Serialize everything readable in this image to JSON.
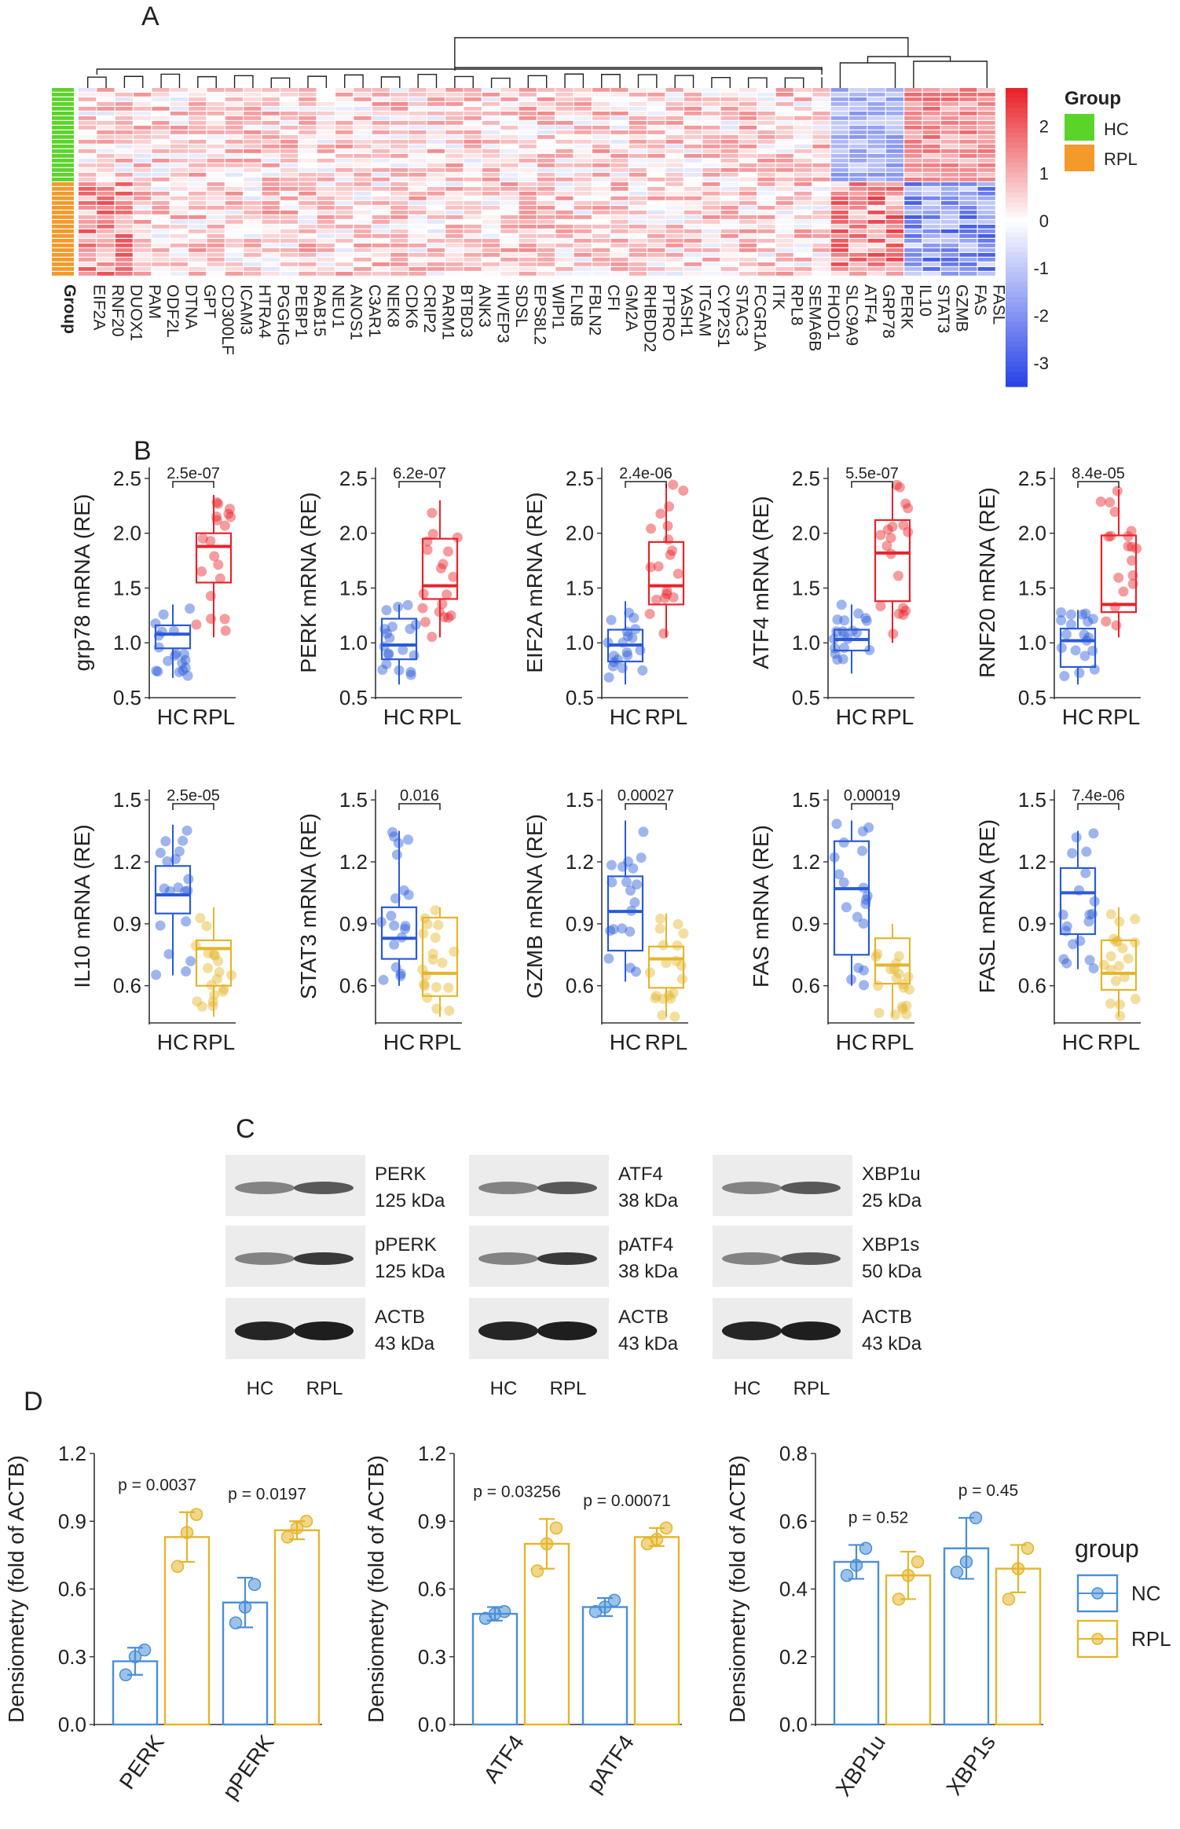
{
  "panel_labels": [
    "A",
    "B",
    "C",
    "D"
  ],
  "colors": {
    "hc": "#2a5bd7",
    "rpl": "#e8232b",
    "rpl_b2": "#e5b52a",
    "nc_d": "#4a8fd8",
    "rpl_d": "#e5b52a",
    "group_hc": "#5bd42a",
    "group_rpl": "#f39a2a",
    "heat_low": "#2a44e8",
    "heat_mid": "#ffffff",
    "heat_high": "#e8232b"
  },
  "chart_data": [
    {
      "type": "heatmap",
      "panel": "A",
      "row_annotation_label": "Group",
      "columns": [
        "EIF2A",
        "RNF20",
        "DUOX1",
        "PAM",
        "ODF2L",
        "DTNA",
        "GPT",
        "CD300LF",
        "ICAM3",
        "HTRA4",
        "PGGHG",
        "PEBP1",
        "RAB15",
        "NEU1",
        "ANOS1",
        "C3AR1",
        "NEK8",
        "CDK6",
        "CRIP2",
        "PARM1",
        "BTBD3",
        "ANK3",
        "HIVEP3",
        "SDSL",
        "EPS8L2",
        "WIPI1",
        "FLNB",
        "FBLN2",
        "CFI",
        "GM2A",
        "RHBDD2",
        "PTPRO",
        "YASH1",
        "ITGAM",
        "CYP2S1",
        "STAC3",
        "FCGR1A",
        "ITK",
        "RPL8",
        "SEMA6B",
        "FHOD1",
        "SLC9A9",
        "ATF4",
        "GRP78",
        "PERK",
        "IL10",
        "STAT3",
        "GZMB",
        "FAS",
        "FASL"
      ],
      "legend": {
        "title": "Group",
        "entries": [
          "HC",
          "RPL"
        ]
      },
      "colorbar": {
        "ticks": [
          "2",
          "1",
          "0",
          "-1",
          "-2",
          "-3"
        ],
        "range": [
          -3.5,
          2.8
        ]
      },
      "n_hc": 20,
      "n_rpl": 20
    },
    {
      "type": "box",
      "panel": "B",
      "groups": [
        "HC",
        "RPL"
      ],
      "plots": [
        {
          "ylabel": "grp78 mRNA (RE)",
          "p": "2.5e-07",
          "ylim": [
            0.5,
            2.6
          ],
          "ticks": [
            0.5,
            1.0,
            1.5,
            2.0,
            2.5
          ],
          "box_hc": [
            0.68,
            0.95,
            1.08,
            1.16,
            1.35
          ],
          "box_rpl": [
            1.05,
            1.55,
            1.88,
            2.0,
            2.35
          ],
          "color_rpl": "red"
        },
        {
          "ylabel": "PERK mRNA (RE)",
          "p": "6.2e-07",
          "ylim": [
            0.5,
            2.6
          ],
          "ticks": [
            0.5,
            1.0,
            1.5,
            2.0,
            2.5
          ],
          "box_hc": [
            0.62,
            0.85,
            0.98,
            1.22,
            1.35
          ],
          "box_rpl": [
            1.05,
            1.4,
            1.52,
            1.95,
            2.3
          ],
          "color_rpl": "red"
        },
        {
          "ylabel": "EIF2A mRNA (RE)",
          "p": "2.4e-06",
          "ylim": [
            0.5,
            2.6
          ],
          "ticks": [
            0.5,
            1.0,
            1.5,
            2.0,
            2.5
          ],
          "box_hc": [
            0.62,
            0.83,
            0.98,
            1.12,
            1.38
          ],
          "box_rpl": [
            1.05,
            1.35,
            1.52,
            1.92,
            2.45
          ],
          "color_rpl": "red"
        },
        {
          "ylabel": "ATF4 mRNA (RE)",
          "p": "5.5e-07",
          "ylim": [
            0.5,
            2.6
          ],
          "ticks": [
            0.5,
            1.0,
            1.5,
            2.0,
            2.5
          ],
          "box_hc": [
            0.72,
            0.93,
            1.03,
            1.12,
            1.35
          ],
          "box_rpl": [
            1.0,
            1.38,
            1.82,
            2.12,
            2.45
          ],
          "color_rpl": "red"
        },
        {
          "ylabel": "RNF20 mRNA (RE)",
          "p": "8.4e-05",
          "ylim": [
            0.5,
            2.6
          ],
          "ticks": [
            0.5,
            1.0,
            1.5,
            2.0,
            2.5
          ],
          "box_hc": [
            0.62,
            0.78,
            1.02,
            1.13,
            1.3
          ],
          "box_rpl": [
            1.05,
            1.28,
            1.35,
            1.98,
            2.4
          ],
          "color_rpl": "red"
        },
        {
          "ylabel": "IL10 mRNA (RE)",
          "p": "2.5e-05",
          "ylim": [
            0.42,
            1.55
          ],
          "ticks": [
            0.6,
            0.9,
            1.2,
            1.5
          ],
          "box_hc": [
            0.65,
            0.95,
            1.04,
            1.18,
            1.38
          ],
          "box_rpl": [
            0.45,
            0.6,
            0.78,
            0.82,
            0.98
          ],
          "color_rpl": "yellow"
        },
        {
          "ylabel": "STAT3 mRNA (RE)",
          "p": "0.016",
          "ylim": [
            0.42,
            1.55
          ],
          "ticks": [
            0.6,
            0.9,
            1.2,
            1.5
          ],
          "box_hc": [
            0.6,
            0.73,
            0.83,
            0.98,
            1.35
          ],
          "box_rpl": [
            0.45,
            0.55,
            0.66,
            0.93,
            0.98
          ],
          "color_rpl": "yellow"
        },
        {
          "ylabel": "GZMB mRNA (RE)",
          "p": "0.00027",
          "ylim": [
            0.42,
            1.55
          ],
          "ticks": [
            0.6,
            0.9,
            1.2,
            1.5
          ],
          "box_hc": [
            0.62,
            0.77,
            0.96,
            1.13,
            1.4
          ],
          "box_rpl": [
            0.45,
            0.59,
            0.73,
            0.79,
            0.95
          ],
          "color_rpl": "yellow"
        },
        {
          "ylabel": "FAS mRNA (RE)",
          "p": "0.00019",
          "ylim": [
            0.42,
            1.55
          ],
          "ticks": [
            0.6,
            0.9,
            1.2,
            1.5
          ],
          "box_hc": [
            0.6,
            0.75,
            1.07,
            1.3,
            1.4
          ],
          "box_rpl": [
            0.45,
            0.61,
            0.7,
            0.83,
            0.9
          ],
          "color_rpl": "yellow"
        },
        {
          "ylabel": "FASL mRNA (RE)",
          "p": "7.4e-06",
          "ylim": [
            0.42,
            1.55
          ],
          "ticks": [
            0.6,
            0.9,
            1.2,
            1.5
          ],
          "box_hc": [
            0.68,
            0.85,
            1.05,
            1.17,
            1.35
          ],
          "box_rpl": [
            0.45,
            0.58,
            0.66,
            0.82,
            0.98
          ],
          "color_rpl": "yellow"
        }
      ]
    },
    {
      "type": "bar",
      "panel": "D",
      "ylabel": "Densiometry (fold of ACTB)",
      "legend": {
        "title": "group",
        "entries": [
          "NC",
          "RPL"
        ]
      },
      "plots": [
        {
          "categories": [
            "PERK",
            "pPERK"
          ],
          "ylim": [
            0,
            1.2
          ],
          "ticks": [
            "0.0",
            "0.3",
            "0.6",
            "0.9",
            "1.2"
          ],
          "series": [
            {
              "name": "NC",
              "values": [
                0.28,
                0.54
              ],
              "err": [
                0.06,
                0.11
              ],
              "points": [
                [
                  0.22,
                  0.3,
                  0.33
                ],
                [
                  0.45,
                  0.52,
                  0.62
                ]
              ]
            },
            {
              "name": "RPL",
              "values": [
                0.83,
                0.86
              ],
              "err": [
                0.11,
                0.04
              ],
              "points": [
                [
                  0.7,
                  0.85,
                  0.93
                ],
                [
                  0.83,
                  0.87,
                  0.9
                ]
              ]
            }
          ],
          "pvalues": [
            "p = 0.0037",
            "p = 0.0197"
          ]
        },
        {
          "categories": [
            "ATF4",
            "pATF4"
          ],
          "ylim": [
            0,
            1.2
          ],
          "ticks": [
            "0.0",
            "0.3",
            "0.6",
            "0.9",
            "1.2"
          ],
          "series": [
            {
              "name": "NC",
              "values": [
                0.49,
                0.52
              ],
              "err": [
                0.03,
                0.04
              ],
              "points": [
                [
                  0.47,
                  0.49,
                  0.5
                ],
                [
                  0.5,
                  0.52,
                  0.55
                ]
              ]
            },
            {
              "name": "RPL",
              "values": [
                0.8,
                0.83
              ],
              "err": [
                0.11,
                0.04
              ],
              "points": [
                [
                  0.68,
                  0.8,
                  0.87
                ],
                [
                  0.8,
                  0.82,
                  0.87
                ]
              ]
            }
          ],
          "pvalues": [
            "p = 0.03256",
            "p = 0.00071"
          ]
        },
        {
          "categories": [
            "XBP1u",
            "XBP1s"
          ],
          "ylim": [
            0,
            0.8
          ],
          "ticks": [
            "0.0",
            "0.2",
            "0.4",
            "0.6",
            "0.8"
          ],
          "series": [
            {
              "name": "NC",
              "values": [
                0.48,
                0.52
              ],
              "err": [
                0.05,
                0.09
              ],
              "points": [
                [
                  0.44,
                  0.47,
                  0.52
                ],
                [
                  0.45,
                  0.48,
                  0.61
                ]
              ]
            },
            {
              "name": "RPL",
              "values": [
                0.44,
                0.46
              ],
              "err": [
                0.07,
                0.07
              ],
              "points": [
                [
                  0.37,
                  0.44,
                  0.48
                ],
                [
                  0.37,
                  0.46,
                  0.52
                ]
              ]
            }
          ],
          "pvalues": [
            "p = 0.52",
            "p = 0.45"
          ]
        }
      ]
    }
  ],
  "blots": {
    "columns": [
      {
        "bands": [
          {
            "name": "PERK",
            "kda": "125 kDa"
          },
          {
            "name": "pPERK",
            "kda": "125 kDa"
          },
          {
            "name": "ACTB",
            "kda": "43 kDa"
          }
        ]
      },
      {
        "bands": [
          {
            "name": "ATF4",
            "kda": "38 kDa"
          },
          {
            "name": "pATF4",
            "kda": "38 kDa"
          },
          {
            "name": "ACTB",
            "kda": "43 kDa"
          }
        ]
      },
      {
        "bands": [
          {
            "name": "XBP1u",
            "kda": "25 kDa"
          },
          {
            "name": "XBP1s",
            "kda": "50 kDa"
          },
          {
            "name": "ACTB",
            "kda": "43 kDa"
          }
        ]
      }
    ],
    "lane_labels": [
      "HC",
      "RPL"
    ]
  }
}
